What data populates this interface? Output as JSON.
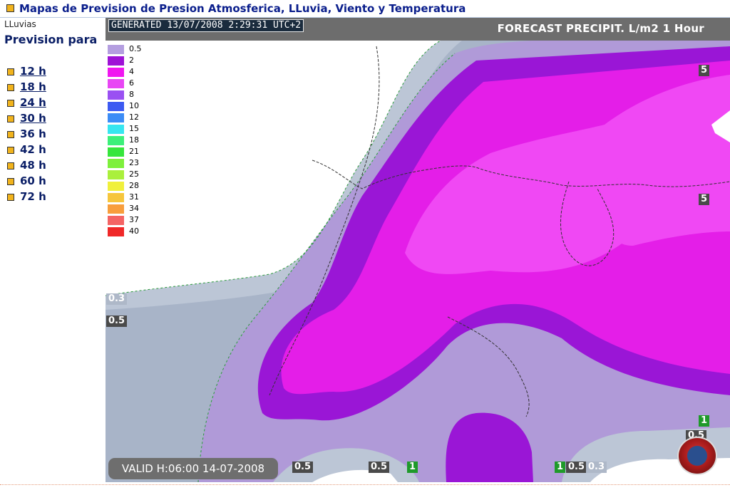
{
  "page": {
    "title": "Mapas de Prevision de Presion Atmosferica, LLuvia, Viento y Temperatura"
  },
  "sidebar": {
    "category": "LLuvias",
    "heading": "Prevision para",
    "hours": [
      {
        "label": "12 h",
        "link": true
      },
      {
        "label": "18 h",
        "link": true
      },
      {
        "label": "24 h",
        "link": true
      },
      {
        "label": "30 h",
        "link": true
      },
      {
        "label": "36 h",
        "link": false
      },
      {
        "label": "42 h",
        "link": false
      },
      {
        "label": "48 h",
        "link": false
      },
      {
        "label": "60 h",
        "link": false
      },
      {
        "label": "72 h",
        "link": false
      }
    ]
  },
  "map": {
    "generated": "GENERATED 13/07/2008 2:29:31 UTC+2",
    "header": "FORECAST  PRECIPIT. L/m2  1 Hour",
    "valid": "VALID H:06:00  14-07-2008",
    "legend": [
      {
        "value": "0.5",
        "color": "#b49ee0"
      },
      {
        "value": "2",
        "color": "#9e12d6"
      },
      {
        "value": "4",
        "color": "#f016f0"
      },
      {
        "value": "6",
        "color": "#e846f4"
      },
      {
        "value": "8",
        "color": "#9a50f2"
      },
      {
        "value": "10",
        "color": "#3c5af2"
      },
      {
        "value": "12",
        "color": "#3c8cf6"
      },
      {
        "value": "15",
        "color": "#36e6f0"
      },
      {
        "value": "18",
        "color": "#3cf07a"
      },
      {
        "value": "21",
        "color": "#36e63c"
      },
      {
        "value": "23",
        "color": "#7ef03c"
      },
      {
        "value": "25",
        "color": "#aaf03c"
      },
      {
        "value": "28",
        "color": "#f0f03c"
      },
      {
        "value": "31",
        "color": "#f6c63c"
      },
      {
        "value": "34",
        "color": "#f89e3c"
      },
      {
        "value": "37",
        "color": "#f46464"
      },
      {
        "value": "40",
        "color": "#f02828"
      }
    ],
    "contour_labels": [
      {
        "text": "0.3",
        "style": "light"
      },
      {
        "text": "0.5",
        "style": "dark"
      },
      {
        "text": "5",
        "style": "dark"
      },
      {
        "text": "5",
        "style": "dark"
      },
      {
        "text": "1",
        "style": "green"
      },
      {
        "text": "0.5",
        "style": "dark"
      },
      {
        "text": "0.5",
        "style": "dark"
      },
      {
        "text": "0.5",
        "style": "dark"
      },
      {
        "text": "1",
        "style": "green"
      },
      {
        "text": "1",
        "style": "green"
      },
      {
        "text": "0.5",
        "style": "dark"
      },
      {
        "text": "0.3",
        "style": "light"
      }
    ],
    "colors": {
      "grey_outer": "#bcc6d6",
      "grey_inner": "#a8b4c8",
      "lavender": "#b09ad8",
      "purple": "#9a16d6",
      "magenta": "#e41ee8",
      "pink": "#f048f4"
    }
  }
}
